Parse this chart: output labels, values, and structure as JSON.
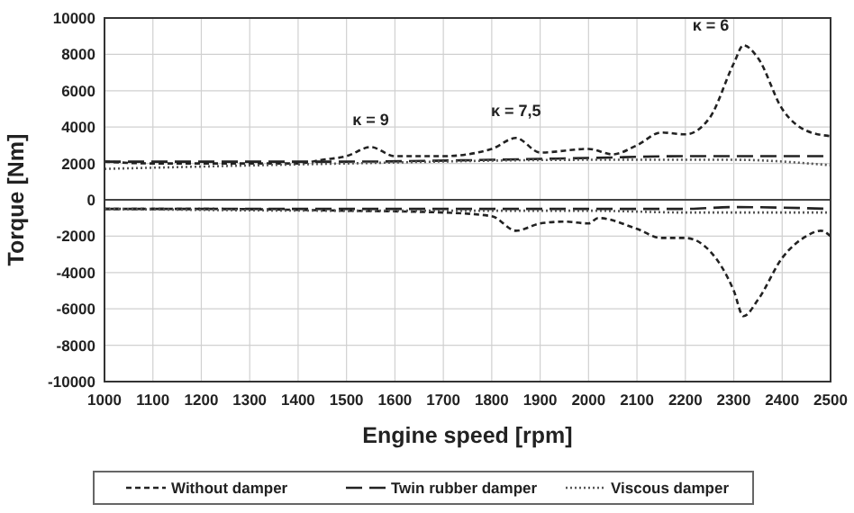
{
  "chart_data": {
    "type": "line",
    "xlabel": "Engine speed [rpm]",
    "ylabel": "Torque [Nm]",
    "xlim": [
      1000,
      2500
    ],
    "ylim": [
      -10000,
      10000
    ],
    "xticks": [
      1000,
      1100,
      1200,
      1300,
      1400,
      1500,
      1600,
      1700,
      1800,
      1900,
      2000,
      2100,
      2200,
      2300,
      2400,
      2500
    ],
    "yticks": [
      -10000,
      -8000,
      -6000,
      -4000,
      -2000,
      0,
      2000,
      4000,
      6000,
      8000,
      10000
    ],
    "grid": true,
    "legend": "bottom",
    "annotations": [
      {
        "text": "κ = 9",
        "x": 1550,
        "y": 2900
      },
      {
        "text": "κ = 7,5",
        "x": 1850,
        "y": 3400
      },
      {
        "text": "κ = 6",
        "x": 2320,
        "y": 8500
      }
    ],
    "series": [
      {
        "name": "Without damper",
        "color": "#222222",
        "line_style": "dashed",
        "x": [
          1000,
          1100,
          1200,
          1300,
          1400,
          1450,
          1500,
          1550,
          1600,
          1700,
          1800,
          1850,
          1900,
          2000,
          2050,
          2100,
          2150,
          2200,
          2250,
          2300,
          2320,
          2350,
          2400,
          2450,
          2500
        ],
        "values": [
          2100,
          2000,
          2000,
          2000,
          2000,
          2200,
          2400,
          2900,
          2400,
          2400,
          2800,
          3400,
          2600,
          2800,
          2500,
          3000,
          3700,
          3600,
          4500,
          7500,
          8500,
          7800,
          5000,
          3800,
          3500
        ]
      },
      {
        "color": "#222222",
        "line_style": "dashed",
        "x": [
          1000,
          1200,
          1500,
          1700,
          1800,
          1850,
          1900,
          1950,
          2000,
          2020,
          2100,
          2150,
          2200,
          2250,
          2300,
          2320,
          2350,
          2400,
          2450,
          2480,
          2500
        ],
        "values": [
          -500,
          -500,
          -600,
          -700,
          -900,
          -1700,
          -1300,
          -1200,
          -1300,
          -1000,
          -1600,
          -2100,
          -2100,
          -2800,
          -5000,
          -6400,
          -5500,
          -3200,
          -2000,
          -1700,
          -2000
        ]
      },
      {
        "name": "Twin rubber damper",
        "color": "#222222",
        "line_style": "longdash",
        "x": [
          1000,
          1500,
          1800,
          2000,
          2200,
          2300,
          2500
        ],
        "values": [
          2100,
          2100,
          2200,
          2300,
          2400,
          2400,
          2400
        ]
      },
      {
        "color": "#222222",
        "line_style": "longdash",
        "x": [
          1000,
          1500,
          1800,
          2000,
          2200,
          2300,
          2500
        ],
        "values": [
          -500,
          -500,
          -500,
          -500,
          -500,
          -400,
          -500
        ]
      },
      {
        "name": "Viscous damper",
        "color": "#555555",
        "line_style": "dotted",
        "x": [
          1000,
          1500,
          2000,
          2300,
          2500
        ],
        "values": [
          1700,
          2000,
          2200,
          2200,
          1900
        ]
      },
      {
        "color": "#555555",
        "line_style": "dotted",
        "x": [
          1000,
          1500,
          2000,
          2200,
          2500
        ],
        "values": [
          -500,
          -600,
          -600,
          -700,
          -700
        ]
      }
    ]
  }
}
